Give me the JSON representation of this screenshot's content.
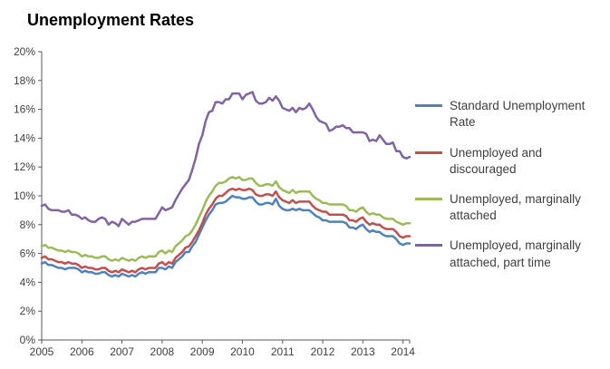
{
  "chart_data": {
    "type": "line",
    "title": "Unemployment Rates",
    "x_unit": "month",
    "x_start": "2005-01",
    "x_tick_labels": [
      "2005",
      "2006",
      "2007",
      "2008",
      "2009",
      "2010",
      "2011",
      "2012",
      "2013",
      "2014"
    ],
    "y_tick_labels": [
      "0%",
      "2%",
      "4%",
      "6%",
      "8%",
      "10%",
      "12%",
      "14%",
      "16%",
      "18%",
      "20%"
    ],
    "ylim": [
      0,
      20
    ],
    "grid": false,
    "legend_position": "right",
    "axis_color": "#595959",
    "series": [
      {
        "name": "Standard Unemployment Rate",
        "color": "#4F81BD",
        "values": [
          5.3,
          5.4,
          5.2,
          5.2,
          5.1,
          5.0,
          5.0,
          4.9,
          5.0,
          5.0,
          5.0,
          4.9,
          4.7,
          4.8,
          4.7,
          4.7,
          4.6,
          4.6,
          4.7,
          4.7,
          4.5,
          4.4,
          4.5,
          4.4,
          4.6,
          4.5,
          4.4,
          4.5,
          4.4,
          4.6,
          4.7,
          4.6,
          4.7,
          4.7,
          4.7,
          5.0,
          5.0,
          4.9,
          5.1,
          5.0,
          5.4,
          5.6,
          5.8,
          6.1,
          6.1,
          6.5,
          6.8,
          7.3,
          7.8,
          8.3,
          8.7,
          9.0,
          9.4,
          9.5,
          9.5,
          9.6,
          9.8,
          10.0,
          9.9,
          9.9,
          9.8,
          9.8,
          9.9,
          9.9,
          9.6,
          9.4,
          9.4,
          9.5,
          9.5,
          9.4,
          9.8,
          9.3,
          9.1,
          9.0,
          9.0,
          9.1,
          9.0,
          9.1,
          9.0,
          9.0,
          9.0,
          8.8,
          8.6,
          8.5,
          8.3,
          8.3,
          8.2,
          8.2,
          8.2,
          8.2,
          8.2,
          8.1,
          7.8,
          7.8,
          7.7,
          7.9,
          8.0,
          7.7,
          7.5,
          7.6,
          7.5,
          7.5,
          7.3,
          7.2,
          7.2,
          7.2,
          7.0,
          6.7,
          6.6,
          6.7,
          6.7
        ]
      },
      {
        "name": "Unemployed and discouraged",
        "color": "#C0504D",
        "values": [
          5.7,
          5.8,
          5.6,
          5.6,
          5.5,
          5.4,
          5.4,
          5.3,
          5.4,
          5.3,
          5.3,
          5.2,
          5.0,
          5.1,
          5.0,
          5.0,
          4.9,
          4.9,
          5.0,
          5.0,
          4.8,
          4.7,
          4.8,
          4.7,
          4.9,
          4.8,
          4.7,
          4.8,
          4.7,
          4.9,
          5.0,
          4.9,
          5.0,
          5.0,
          5.0,
          5.3,
          5.4,
          5.2,
          5.4,
          5.3,
          5.7,
          5.9,
          6.1,
          6.4,
          6.5,
          6.8,
          7.2,
          7.6,
          8.1,
          8.7,
          9.1,
          9.4,
          9.8,
          10.0,
          10.0,
          10.2,
          10.4,
          10.5,
          10.4,
          10.5,
          10.4,
          10.4,
          10.5,
          10.4,
          10.1,
          10.0,
          10.0,
          10.1,
          10.1,
          10.0,
          10.3,
          9.9,
          9.7,
          9.6,
          9.5,
          9.7,
          9.5,
          9.6,
          9.6,
          9.6,
          9.6,
          9.3,
          9.1,
          9.0,
          8.9,
          8.9,
          8.7,
          8.7,
          8.7,
          8.7,
          8.7,
          8.6,
          8.3,
          8.3,
          8.2,
          8.4,
          8.5,
          8.2,
          8.0,
          8.1,
          8.0,
          8.0,
          7.8,
          7.7,
          7.7,
          7.7,
          7.5,
          7.2,
          7.1,
          7.2,
          7.2
        ]
      },
      {
        "name": "Unemployed, marginally attached",
        "color": "#9BBB59",
        "values": [
          6.5,
          6.6,
          6.4,
          6.4,
          6.3,
          6.2,
          6.2,
          6.1,
          6.2,
          6.1,
          6.1,
          6.0,
          5.8,
          5.9,
          5.8,
          5.8,
          5.7,
          5.7,
          5.8,
          5.8,
          5.6,
          5.5,
          5.6,
          5.5,
          5.7,
          5.6,
          5.5,
          5.6,
          5.5,
          5.7,
          5.8,
          5.7,
          5.8,
          5.8,
          5.8,
          6.1,
          6.2,
          6.0,
          6.2,
          6.1,
          6.5,
          6.7,
          6.9,
          7.2,
          7.3,
          7.6,
          8.0,
          8.5,
          9.0,
          9.6,
          10.0,
          10.3,
          10.7,
          10.9,
          10.9,
          11.0,
          11.2,
          11.3,
          11.2,
          11.3,
          11.1,
          11.1,
          11.2,
          11.2,
          10.9,
          10.7,
          10.7,
          10.8,
          10.8,
          10.7,
          11.0,
          10.6,
          10.4,
          10.3,
          10.2,
          10.4,
          10.2,
          10.3,
          10.3,
          10.3,
          10.3,
          10.0,
          9.8,
          9.7,
          9.5,
          9.5,
          9.4,
          9.4,
          9.4,
          9.4,
          9.4,
          9.3,
          9.0,
          9.0,
          8.9,
          9.1,
          9.2,
          8.9,
          8.7,
          8.8,
          8.7,
          8.7,
          8.5,
          8.4,
          8.4,
          8.4,
          8.2,
          8.1,
          8.0,
          8.1,
          8.1
        ]
      },
      {
        "name": "Unemployed, marginally attached, part time",
        "color": "#8064A2",
        "values": [
          9.3,
          9.4,
          9.1,
          9.0,
          9.0,
          9.0,
          8.9,
          8.9,
          9.0,
          8.7,
          8.7,
          8.6,
          8.4,
          8.5,
          8.3,
          8.2,
          8.2,
          8.4,
          8.5,
          8.4,
          8.0,
          8.2,
          8.1,
          7.9,
          8.4,
          8.2,
          8.0,
          8.2,
          8.2,
          8.3,
          8.4,
          8.4,
          8.4,
          8.4,
          8.4,
          8.8,
          9.2,
          9.0,
          9.1,
          9.2,
          9.7,
          10.1,
          10.5,
          10.8,
          11.1,
          11.8,
          12.6,
          13.6,
          14.2,
          15.2,
          15.8,
          15.9,
          16.5,
          16.5,
          16.4,
          16.7,
          16.7,
          17.1,
          17.1,
          17.1,
          16.7,
          17.0,
          17.1,
          17.2,
          16.6,
          16.4,
          16.4,
          16.5,
          16.8,
          16.6,
          16.9,
          16.6,
          16.1,
          16.0,
          15.9,
          16.1,
          15.8,
          16.1,
          16.0,
          16.1,
          16.4,
          16.0,
          15.5,
          15.2,
          15.1,
          15.0,
          14.5,
          14.6,
          14.8,
          14.8,
          14.9,
          14.7,
          14.7,
          14.4,
          14.4,
          14.4,
          14.4,
          14.3,
          13.8,
          13.9,
          13.8,
          14.2,
          13.9,
          13.6,
          13.6,
          13.7,
          13.1,
          13.1,
          12.7,
          12.6,
          12.7
        ]
      }
    ]
  }
}
